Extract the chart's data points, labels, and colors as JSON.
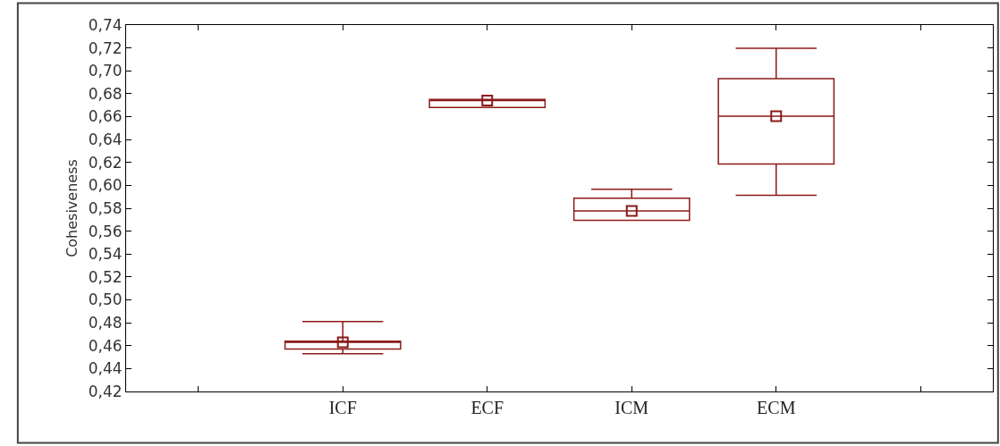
{
  "chart_data": {
    "type": "box",
    "ylabel": "Cohesiveness",
    "categories": [
      null,
      "ICF",
      "ECF",
      "ICM",
      "ECM",
      null
    ],
    "boxes": [
      null,
      {
        "low": 0.453,
        "q1": 0.457,
        "median": 0.463,
        "q3": 0.464,
        "high": 0.481
      },
      {
        "low": 0.668,
        "q1": 0.668,
        "median": 0.674,
        "q3": 0.675,
        "high": 0.675
      },
      {
        "low": 0.5695,
        "q1": 0.5695,
        "median": 0.5776,
        "q3": 0.5888,
        "high": 0.5966
      },
      {
        "low": 0.5913,
        "q1": 0.6186,
        "median": 0.6604,
        "q3": 0.6931,
        "high": 0.7198
      },
      null
    ],
    "series": [
      {
        "type": "scatter",
        "x": [
          "ICF",
          "ECF",
          "ICM",
          "ECM"
        ],
        "values": [
          0.463,
          0.674,
          0.5776,
          0.6604
        ],
        "color": "#8b1a1a",
        "marker": "square"
      }
    ],
    "color": "#8b1a1a",
    "ylim": [
      0.42,
      0.74
    ],
    "yticks": [
      {
        "value": 0.42,
        "label": "0,42"
      },
      {
        "value": 0.44,
        "label": "0,44"
      },
      {
        "value": 0.46,
        "label": "0,46"
      },
      {
        "value": 0.48,
        "label": "0,48"
      },
      {
        "value": 0.5,
        "label": "0,50"
      },
      {
        "value": 0.52,
        "label": "0,52"
      },
      {
        "value": 0.54,
        "label": "0,54"
      },
      {
        "value": 0.56,
        "label": "0,56"
      },
      {
        "value": 0.58,
        "label": "0,58"
      },
      {
        "value": 0.6,
        "label": "0,60"
      },
      {
        "value": 0.62,
        "label": "0,62"
      },
      {
        "value": 0.64,
        "label": "0,64"
      },
      {
        "value": 0.66,
        "label": "0,66"
      },
      {
        "value": 0.68,
        "label": "0,68"
      },
      {
        "value": 0.7,
        "label": "0,70"
      },
      {
        "value": 0.72,
        "label": "0,72"
      },
      {
        "value": 0.74,
        "label": "0,74"
      }
    ]
  }
}
